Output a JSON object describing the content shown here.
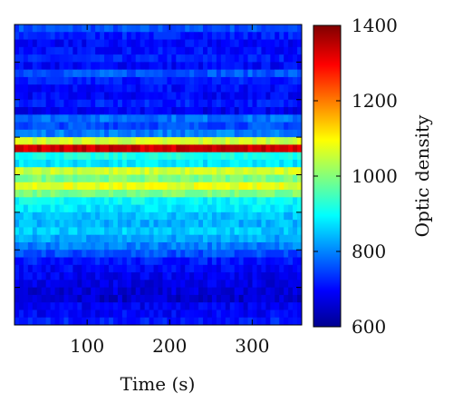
{
  "chart_data": {
    "type": "heatmap",
    "title": "",
    "xlabel": "Time (s)",
    "ylabel": "",
    "xlim": [
      12,
      360
    ],
    "xticks": [
      100,
      200,
      300
    ],
    "yticks_count": 8,
    "y_tick_labels_shown": false,
    "colorbar": {
      "label": "Optic density",
      "range": [
        600,
        1400
      ],
      "ticks": [
        600,
        800,
        1000,
        1200,
        1400
      ],
      "colormap": "jet",
      "colors": [
        "#00008f",
        "#0000ff",
        "#00ffff",
        "#ffff00",
        "#ff0000",
        "#800000"
      ]
    },
    "row_profile": {
      "description_rows_top_to_bottom": 40,
      "values": [
        760,
        720,
        700,
        710,
        720,
        700,
        770,
        720,
        705,
        700,
        720,
        690,
        790,
        760,
        800,
        1060,
        1340,
        920,
        880,
        1060,
        1000,
        1080,
        1000,
        900,
        880,
        850,
        840,
        860,
        830,
        800,
        760,
        720,
        700,
        690,
        680,
        670,
        660,
        690,
        700,
        720
      ]
    },
    "grid": false,
    "legend": "colorbar-right"
  }
}
